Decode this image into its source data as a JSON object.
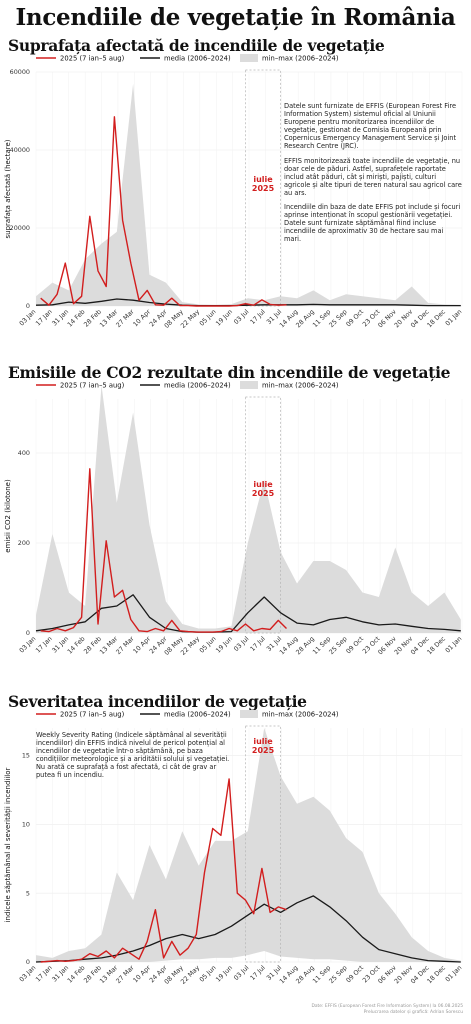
{
  "main_title": "Incendiile de vegetație în România",
  "colors": {
    "year2025": "#d21e1e",
    "mean": "#1a1a1a",
    "range": "#dcdcdc"
  },
  "legend": {
    "year2025": "2025 (7 ian–5 aug)",
    "mean": "media (2006–2024)",
    "range": "min–max (2006–2024)"
  },
  "july_label_line1": "iulie",
  "july_label_line2": "2025",
  "notes": {
    "area_p1": "Datele sunt furnizate de EFFIS (European Forest Fire Information System) sistemul oficial al Uniunii Europene pentru monitorizarea incendiilor de vegetație, gestionat de Comisia Europeană prin Copernicus Emergency Management Service și Joint Research Centre (JRC).",
    "area_p2": "EFFIS monitorizează toate incendiile de vegetație, nu doar cele de păduri. Astfel, suprafețele raportate includ atât păduri, cât și miriști, pajiști, culturi agricole și alte tipuri de teren natural sau agricol care au ars.",
    "area_p3": "Incendiile din baza de date EFFIS pot include și focuri aprinse intenționat în scopul gestionării vegetației. Datele sunt furnizate săptămânal fiind incluse incendiile de aproximativ 30 de hectare sau mai mari.",
    "severity": "Weekly Severity Rating (Indicele săptămânal al severității incendiilor) din EFFIS indică nivelul de pericol potențial al incendiilor de vegetație într-o săptămână, pe baza condițiilor meteorologice și a ariditătii solului și vegetației. Nu arată ce suprafață a fost afectată, ci cât de grav ar putea fi un incendiu."
  },
  "footer": {
    "line1": "Date: EFFIS (European Forest Fire Information System) la 06.08.2025",
    "line2": "Prelucrarea datelor și grafică: Adrian Sorescu"
  },
  "chart_data": [
    {
      "type": "line",
      "title": "Suprafața afectată de incendiile de vegetație",
      "ylabel": "suprafața afectată (hectare)",
      "xlabel": "",
      "ylim": [
        0,
        60000
      ],
      "yticks": [
        0,
        20000,
        40000,
        60000
      ],
      "grid": true,
      "legend_position": "top",
      "x_ticks": [
        "03 Jan",
        "17 Jan",
        "31 Jan",
        "14 Feb",
        "28 Feb",
        "13 Mar",
        "27 Mar",
        "10 Apr",
        "24 Apr",
        "08 May",
        "22 May",
        "05 Jun",
        "19 Jun",
        "03 Jul",
        "17 Jul",
        "31 Jul",
        "14 Aug",
        "28 Aug",
        "11 Sep",
        "25 Sep",
        "09 Oct",
        "23 Oct",
        "06 Nov",
        "20 Nov",
        "04 Dec",
        "18 Dec",
        "01 Jan"
      ],
      "x_start": "2025-01-03",
      "series": [
        {
          "name": "2025 (7 ian–5 aug)",
          "role": "year2025",
          "x": [
            "2025-01-07",
            "2025-01-14",
            "2025-01-21",
            "2025-01-28",
            "2025-02-04",
            "2025-02-11",
            "2025-02-18",
            "2025-02-25",
            "2025-03-04",
            "2025-03-11",
            "2025-03-18",
            "2025-03-25",
            "2025-04-01",
            "2025-04-08",
            "2025-04-15",
            "2025-04-22",
            "2025-04-29",
            "2025-05-06",
            "2025-05-13",
            "2025-05-20",
            "2025-05-27",
            "2025-06-03",
            "2025-06-10",
            "2025-06-17",
            "2025-06-24",
            "2025-07-01",
            "2025-07-08",
            "2025-07-15",
            "2025-07-22",
            "2025-07-29",
            "2025-08-05"
          ],
          "y": [
            2000,
            200,
            3000,
            11000,
            600,
            2500,
            23000,
            9000,
            5000,
            48500,
            22000,
            11000,
            1500,
            4000,
            300,
            200,
            2000,
            100,
            100,
            0,
            0,
            0,
            0,
            0,
            100,
            600,
            200,
            1600,
            400,
            200,
            300
          ]
        },
        {
          "name": "media (2006–2024)",
          "role": "mean",
          "x": [
            "2025-01-03",
            "2025-01-17",
            "2025-01-31",
            "2025-02-14",
            "2025-02-28",
            "2025-03-13",
            "2025-03-27",
            "2025-04-10",
            "2025-04-24",
            "2025-05-08",
            "2025-05-22",
            "2025-06-05",
            "2025-06-19",
            "2025-07-03",
            "2025-07-17",
            "2025-07-31",
            "2025-08-14",
            "2025-08-28",
            "2025-09-11",
            "2025-09-25",
            "2025-10-09",
            "2025-10-23",
            "2025-11-06",
            "2025-11-20",
            "2025-12-04",
            "2025-12-18",
            "2026-01-01"
          ],
          "y": [
            200,
            300,
            1000,
            700,
            1200,
            1800,
            1500,
            900,
            500,
            200,
            100,
            100,
            100,
            200,
            300,
            300,
            300,
            400,
            300,
            300,
            300,
            300,
            300,
            200,
            100,
            100,
            100
          ]
        },
        {
          "name": "min–max (2006–2024)",
          "role": "range",
          "x": [
            "2025-01-03",
            "2025-01-17",
            "2025-01-31",
            "2025-02-14",
            "2025-02-28",
            "2025-03-13",
            "2025-03-27",
            "2025-04-10",
            "2025-04-24",
            "2025-05-08",
            "2025-05-22",
            "2025-06-05",
            "2025-06-19",
            "2025-07-03",
            "2025-07-17",
            "2025-07-31",
            "2025-08-14",
            "2025-08-28",
            "2025-09-11",
            "2025-09-25",
            "2025-10-09",
            "2025-10-23",
            "2025-11-06",
            "2025-11-20",
            "2025-12-04",
            "2025-12-18",
            "2026-01-01"
          ],
          "min": [
            0,
            0,
            0,
            0,
            0,
            0,
            0,
            0,
            0,
            0,
            0,
            0,
            0,
            0,
            0,
            0,
            0,
            0,
            0,
            0,
            0,
            0,
            0,
            0,
            0,
            0,
            0
          ],
          "max": [
            2500,
            6000,
            4000,
            12000,
            16000,
            19000,
            57000,
            8000,
            6000,
            1000,
            400,
            300,
            500,
            2000,
            1500,
            2500,
            2000,
            4000,
            1500,
            3000,
            2500,
            2000,
            1500,
            5000,
            800,
            400,
            300
          ]
        }
      ]
    },
    {
      "type": "line",
      "title": "Emisiile de CO2 rezultate din incendiile de vegetație",
      "ylabel": "emisii CO2 (kilotone)",
      "xlabel": "",
      "ylim": [
        0,
        520
      ],
      "yticks": [
        0,
        200,
        400
      ],
      "grid": true,
      "legend_position": "top",
      "x_ticks": [
        "03 Jan",
        "17 Jan",
        "31 Jan",
        "14 Feb",
        "28 Feb",
        "13 Mar",
        "27 Mar",
        "10 Apr",
        "24 Apr",
        "08 May",
        "22 May",
        "05 Jun",
        "19 Jun",
        "03 Jul",
        "17 Jul",
        "31 Jul",
        "14 Aug",
        "28 Aug",
        "11 Sep",
        "25 Sep",
        "09 Oct",
        "23 Oct",
        "06 Nov",
        "20 Nov",
        "04 Dec",
        "18 Dec",
        "01 Jan"
      ],
      "x_start": "2025-01-03",
      "series": [
        {
          "name": "2025 (7 ian–5 aug)",
          "role": "year2025",
          "x": [
            "2025-01-07",
            "2025-01-14",
            "2025-01-21",
            "2025-01-28",
            "2025-02-04",
            "2025-02-11",
            "2025-02-18",
            "2025-02-25",
            "2025-03-04",
            "2025-03-11",
            "2025-03-18",
            "2025-03-25",
            "2025-04-01",
            "2025-04-08",
            "2025-04-15",
            "2025-04-22",
            "2025-04-29",
            "2025-05-06",
            "2025-05-13",
            "2025-05-20",
            "2025-05-27",
            "2025-06-03",
            "2025-06-10",
            "2025-06-17",
            "2025-06-24",
            "2025-07-01",
            "2025-07-08",
            "2025-07-15",
            "2025-07-22",
            "2025-07-29",
            "2025-08-05"
          ],
          "y": [
            5,
            3,
            10,
            5,
            12,
            35,
            365,
            20,
            205,
            80,
            95,
            30,
            5,
            3,
            10,
            5,
            28,
            5,
            3,
            2,
            2,
            2,
            3,
            10,
            5,
            20,
            5,
            10,
            8,
            28,
            10
          ]
        },
        {
          "name": "media (2006–2024)",
          "role": "mean",
          "x": [
            "2025-01-03",
            "2025-01-17",
            "2025-01-31",
            "2025-02-14",
            "2025-02-28",
            "2025-03-13",
            "2025-03-27",
            "2025-04-10",
            "2025-04-24",
            "2025-05-08",
            "2025-05-22",
            "2025-06-05",
            "2025-06-19",
            "2025-07-03",
            "2025-07-17",
            "2025-07-31",
            "2025-08-14",
            "2025-08-28",
            "2025-09-11",
            "2025-09-25",
            "2025-10-09",
            "2025-10-23",
            "2025-11-06",
            "2025-11-20",
            "2025-12-04",
            "2025-12-18",
            "2026-01-01"
          ],
          "y": [
            5,
            10,
            18,
            25,
            55,
            60,
            85,
            35,
            10,
            3,
            2,
            2,
            3,
            45,
            80,
            45,
            22,
            18,
            30,
            35,
            25,
            18,
            20,
            15,
            10,
            8,
            5
          ]
        },
        {
          "name": "min–max (2006–2024)",
          "role": "range",
          "x": [
            "2025-01-03",
            "2025-01-17",
            "2025-01-31",
            "2025-02-14",
            "2025-02-28",
            "2025-03-13",
            "2025-03-27",
            "2025-04-10",
            "2025-04-24",
            "2025-05-08",
            "2025-05-22",
            "2025-06-05",
            "2025-06-19",
            "2025-07-03",
            "2025-07-17",
            "2025-07-31",
            "2025-08-14",
            "2025-08-28",
            "2025-09-11",
            "2025-09-25",
            "2025-10-09",
            "2025-10-23",
            "2025-11-06",
            "2025-11-20",
            "2025-12-04",
            "2025-12-18",
            "2026-01-01"
          ],
          "min": [
            0,
            0,
            0,
            0,
            0,
            0,
            0,
            0,
            0,
            0,
            0,
            0,
            0,
            0,
            0,
            0,
            0,
            0,
            0,
            0,
            0,
            0,
            0,
            0,
            0,
            0,
            0
          ],
          "max": [
            40,
            220,
            90,
            60,
            550,
            290,
            490,
            240,
            70,
            20,
            10,
            10,
            15,
            200,
            340,
            180,
            110,
            160,
            160,
            140,
            90,
            80,
            190,
            90,
            60,
            90,
            30
          ]
        }
      ]
    },
    {
      "type": "line",
      "title": "Severitatea incendiilor de vegetație",
      "ylabel": "indicele săptămânal al severității incendiilor",
      "xlabel": "",
      "ylim": [
        0,
        17
      ],
      "yticks": [
        0,
        5,
        10,
        15
      ],
      "grid": true,
      "legend_position": "top",
      "x_ticks": [
        "03 Jan",
        "17 Jan",
        "31 Jan",
        "14 Feb",
        "28 Feb",
        "13 Mar",
        "27 Mar",
        "10 Apr",
        "24 Apr",
        "08 May",
        "22 May",
        "05 Jun",
        "19 Jun",
        "03 Jul",
        "17 Jul",
        "31 Jul",
        "14 Aug",
        "28 Aug",
        "11 Sep",
        "25 Sep",
        "09 Oct",
        "23 Oct",
        "06 Nov",
        "20 Nov",
        "04 Dec",
        "18 Dec",
        "01 Jan"
      ],
      "x_start": "2025-01-03",
      "series": [
        {
          "name": "2025 (7 ian–5 aug)",
          "role": "year2025",
          "x": [
            "2025-01-07",
            "2025-01-14",
            "2025-01-21",
            "2025-01-28",
            "2025-02-04",
            "2025-02-11",
            "2025-02-18",
            "2025-02-25",
            "2025-03-04",
            "2025-03-11",
            "2025-03-18",
            "2025-03-25",
            "2025-04-01",
            "2025-04-08",
            "2025-04-15",
            "2025-04-22",
            "2025-04-29",
            "2025-05-06",
            "2025-05-13",
            "2025-05-20",
            "2025-05-27",
            "2025-06-03",
            "2025-06-10",
            "2025-06-17",
            "2025-06-24",
            "2025-07-01",
            "2025-07-08",
            "2025-07-15",
            "2025-07-22",
            "2025-07-29",
            "2025-08-05"
          ],
          "y": [
            0,
            0.05,
            0.1,
            0.05,
            0.1,
            0.2,
            0.6,
            0.4,
            0.8,
            0.3,
            1.0,
            0.6,
            0.2,
            1.5,
            3.8,
            0.3,
            1.5,
            0.5,
            1.0,
            2.0,
            6.5,
            9.7,
            9.2,
            13.3,
            5.0,
            4.5,
            3.5,
            6.8,
            3.6,
            4.0,
            3.8
          ]
        },
        {
          "name": "media (2006–2024)",
          "role": "mean",
          "x": [
            "2025-01-03",
            "2025-01-17",
            "2025-01-31",
            "2025-02-14",
            "2025-02-28",
            "2025-03-13",
            "2025-03-27",
            "2025-04-10",
            "2025-04-24",
            "2025-05-08",
            "2025-05-22",
            "2025-06-05",
            "2025-06-19",
            "2025-07-03",
            "2025-07-17",
            "2025-07-31",
            "2025-08-14",
            "2025-08-28",
            "2025-09-11",
            "2025-09-25",
            "2025-10-09",
            "2025-10-23",
            "2025-11-06",
            "2025-11-20",
            "2025-12-04",
            "2025-12-18",
            "2026-01-01"
          ],
          "y": [
            0,
            0.05,
            0.1,
            0.2,
            0.3,
            0.5,
            0.8,
            1.2,
            1.7,
            2.0,
            1.7,
            2.0,
            2.6,
            3.4,
            4.2,
            3.6,
            4.3,
            4.8,
            4.0,
            3.0,
            1.8,
            0.9,
            0.6,
            0.3,
            0.1,
            0.05,
            0
          ]
        },
        {
          "name": "min–max (2006–2024)",
          "role": "range",
          "x": [
            "2025-01-03",
            "2025-01-17",
            "2025-01-31",
            "2025-02-14",
            "2025-02-28",
            "2025-03-13",
            "2025-03-27",
            "2025-04-10",
            "2025-04-24",
            "2025-05-08",
            "2025-05-22",
            "2025-06-05",
            "2025-06-19",
            "2025-07-03",
            "2025-07-17",
            "2025-07-31",
            "2025-08-14",
            "2025-08-28",
            "2025-09-11",
            "2025-09-25",
            "2025-10-09",
            "2025-10-23",
            "2025-11-06",
            "2025-11-20",
            "2025-12-04",
            "2025-12-18",
            "2026-01-01"
          ],
          "min": [
            0,
            0,
            0,
            0,
            0,
            0,
            0,
            0,
            0.1,
            0.2,
            0.2,
            0.3,
            0.3,
            0.5,
            0.8,
            0.4,
            0.3,
            0.2,
            0.2,
            0.1,
            0,
            0,
            0,
            0,
            0,
            0,
            0
          ],
          "max": [
            0.5,
            0.3,
            0.8,
            1.0,
            2.0,
            6.5,
            4.5,
            8.5,
            6.0,
            9.5,
            7.0,
            8.8,
            8.8,
            9.5,
            17.0,
            13.5,
            11.5,
            12.0,
            11.0,
            9.0,
            8.0,
            5.0,
            3.5,
            1.8,
            0.8,
            0.3,
            0.1
          ]
        }
      ]
    }
  ]
}
